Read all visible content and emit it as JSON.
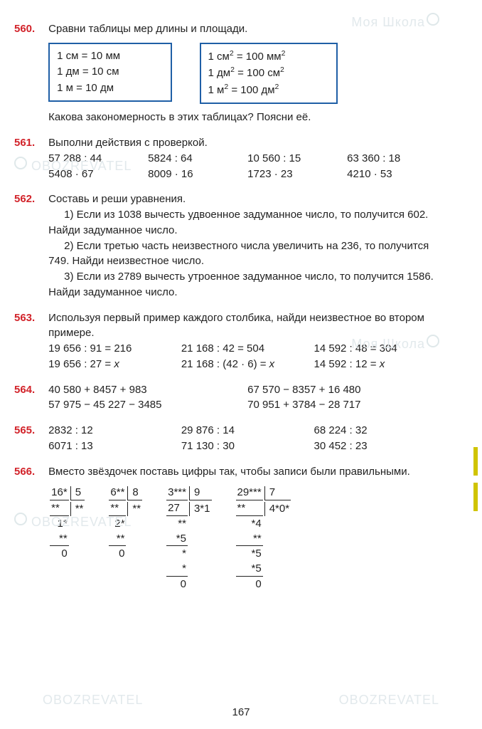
{
  "page_number": "167",
  "watermarks": {
    "text_main": "Моя Школа",
    "text_sub": "OBOZREVATEL"
  },
  "p560": {
    "num": "560.",
    "text": "Сравни таблицы мер длины и площади.",
    "box1": [
      "1 см = 10 мм",
      "1 дм = 10 см",
      "1 м = 10 дм"
    ],
    "box2_html": [
      "1 см<sup>2</sup> = 100 мм<sup>2</sup>",
      "1 дм<sup>2</sup> = 100 см<sup>2</sup>",
      "1 м<sup>2</sup> = 100 дм<sup>2</sup>"
    ],
    "followup": "Какова закономерность в этих таблицах? Поясни её."
  },
  "p561": {
    "num": "561.",
    "text": "Выполни действия с проверкой.",
    "row1": [
      "57 288 : 44",
      "5824 : 64",
      "10 560 : 15",
      "63 360 : 18"
    ],
    "row2": [
      "5408 · 67",
      "8009 · 16",
      "1723 · 23",
      "4210 · 53"
    ]
  },
  "p562": {
    "num": "562.",
    "text": "Составь и реши уравнения.",
    "items": [
      "1) Если из 1038 вычесть удвоенное задуманное число, то получится 602. Найди задуманное число.",
      "2) Если третью часть неизвестного числа увеличить на 236, то получится 749. Найди неизвестное число.",
      "3) Если из 2789 вычесть утроенное задуманное число, то получится 1586. Найди задуманное число."
    ]
  },
  "p563": {
    "num": "563.",
    "text": "Используя первый пример каждого столбика, найди неизвестное во втором примере.",
    "row1": [
      "19 656 : 91 = 216",
      "21 168 : 42 = 504",
      "14 592 : 48 = 304"
    ],
    "row2_html": [
      "19 656 : 27 = <span class='ital'>x</span>",
      "21 168 : (42 · 6) = <span class='ital'>x</span>",
      "14 592 : 12 = <span class='ital'>x</span>"
    ]
  },
  "p564": {
    "num": "564.",
    "row1": [
      "40 580 + 8457 + 983",
      "67 570 − 8357 + 16 480"
    ],
    "row2": [
      "57 975 − 45 227 − 3485",
      "70 951 + 3784 − 28 717"
    ]
  },
  "p565": {
    "num": "565.",
    "row1": [
      "2832 : 12",
      "29 876 : 14",
      "68 224 : 32"
    ],
    "row2": [
      "6071 : 13",
      "71 130 : 30",
      "30 452 : 23"
    ]
  },
  "p566": {
    "num": "566.",
    "text": "Вместо звёздочек поставь цифры так, чтобы записи были правильными.",
    "div1": {
      "dividend": "16*",
      "divisor": "5",
      "quotient": "**",
      "steps": [
        "**",
        "1*",
        "**",
        "0"
      ]
    },
    "div2": {
      "dividend": "6**",
      "divisor": "8",
      "quotient": "**",
      "steps": [
        "**",
        "2*",
        "**",
        "0"
      ]
    },
    "div3": {
      "dividend": "3***",
      "divisor": "9",
      "quotient": "3*1",
      "steps": [
        "27",
        "**",
        "*5",
        "*",
        "*",
        "0"
      ]
    },
    "div4": {
      "dividend": "29***",
      "divisor": "7",
      "quotient": "4*0*",
      "steps": [
        "**",
        "*4",
        "**",
        "*5",
        "*5",
        "0"
      ]
    }
  },
  "colors": {
    "problem_num": "#d2232a",
    "box_border": "#1f5fa6",
    "text": "#222222",
    "watermark": "#e2e9ec",
    "marker": "#d0c400",
    "background": "#ffffff"
  }
}
